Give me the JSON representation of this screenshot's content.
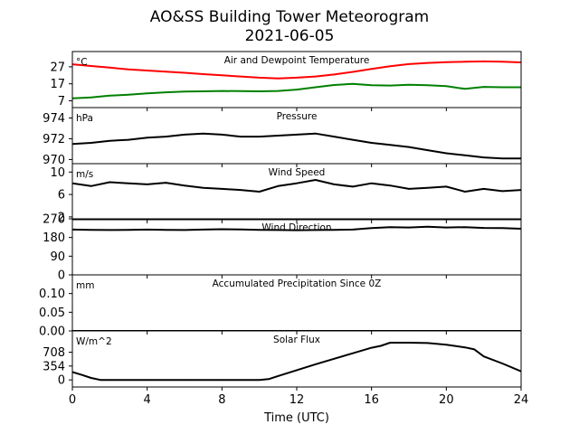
{
  "title": "AO&SS Building Tower Meteorogram",
  "subtitle": "2021-06-05",
  "chart_data": {
    "type": "line",
    "xlabel": "Time (UTC)",
    "xlim": [
      0,
      24
    ],
    "xticks": [
      0,
      4,
      8,
      12,
      16,
      20,
      24
    ],
    "xtick_labels": [
      "0",
      "4",
      "8",
      "12",
      "16",
      "20",
      "24"
    ],
    "panels": [
      {
        "id": "temperature",
        "title": "Air and Dewpoint Temperature",
        "unit": "°C",
        "ylim": [
          3,
          36
        ],
        "yticks": [
          7,
          17,
          27
        ],
        "ytick_labels": [
          "7",
          "17",
          "27"
        ],
        "series": [
          {
            "color": "#ff0000",
            "x": [
              0,
              1,
              2,
              3,
              4,
              5,
              6,
              7,
              8,
              9,
              10,
              11,
              12,
              13,
              14,
              15,
              16,
              17,
              18,
              19,
              20,
              21,
              22,
              23,
              24
            ],
            "values": [
              28.5,
              27.5,
              26.5,
              25.5,
              24.8,
              24.2,
              23.5,
              22.7,
              22.0,
              21.3,
              20.6,
              20.2,
              20.6,
              21.3,
              22.5,
              24.0,
              25.8,
              27.3,
              28.6,
              29.3,
              29.7,
              30.0,
              30.2,
              30.0,
              29.6
            ]
          },
          {
            "color": "#008000",
            "x": [
              0,
              1,
              2,
              3,
              4,
              5,
              6,
              7,
              8,
              9,
              10,
              11,
              12,
              13,
              14,
              15,
              16,
              17,
              18,
              19,
              20,
              21,
              22,
              23,
              24
            ],
            "values": [
              8.5,
              9.0,
              10.0,
              10.6,
              11.4,
              12.0,
              12.4,
              12.6,
              12.8,
              12.7,
              12.6,
              12.8,
              13.6,
              15.0,
              16.3,
              17.0,
              16.2,
              16.0,
              16.4,
              16.2,
              15.6,
              14.0,
              15.2,
              15.0,
              15.0
            ]
          }
        ]
      },
      {
        "id": "pressure",
        "title": "Pressure",
        "unit": "hPa",
        "ylim": [
          969.6,
          975.0
        ],
        "yticks": [
          970,
          972,
          974
        ],
        "ytick_labels": [
          "970",
          "972",
          "974"
        ],
        "series": [
          {
            "color": "#000000",
            "x": [
              0,
              1,
              2,
              3,
              4,
              5,
              6,
              7,
              8,
              9,
              10,
              11,
              12,
              13,
              14,
              15,
              16,
              17,
              18,
              19,
              20,
              21,
              22,
              23,
              24
            ],
            "values": [
              971.5,
              971.6,
              971.8,
              971.9,
              972.1,
              972.2,
              972.4,
              972.5,
              972.4,
              972.2,
              972.2,
              972.3,
              972.4,
              972.5,
              972.2,
              971.9,
              971.6,
              971.4,
              971.2,
              970.9,
              970.6,
              970.4,
              970.2,
              970.1,
              970.1
            ]
          }
        ]
      },
      {
        "id": "wind-speed",
        "title": "Wind Speed",
        "unit": "m/s",
        "ylim": [
          1.5,
          11.5
        ],
        "yticks": [
          2,
          6,
          10
        ],
        "ytick_labels": [
          "2",
          "6",
          "10"
        ],
        "series": [
          {
            "color": "#000000",
            "x": [
              0,
              1,
              2,
              3,
              4,
              5,
              6,
              7,
              8,
              9,
              10,
              11,
              12,
              13,
              14,
              15,
              16,
              17,
              18,
              19,
              20,
              21,
              22,
              23,
              24
            ],
            "values": [
              8.0,
              7.5,
              8.2,
              8.0,
              7.8,
              8.1,
              7.6,
              7.2,
              7.0,
              6.8,
              6.5,
              7.5,
              8.0,
              8.6,
              7.8,
              7.4,
              8.0,
              7.6,
              7.0,
              7.2,
              7.4,
              6.5,
              7.0,
              6.6,
              6.8
            ]
          }
        ]
      },
      {
        "id": "wind-direction",
        "title": "Wind Direction",
        "unit": "",
        "ylim": [
          0,
          270
        ],
        "yticks": [
          0,
          90,
          180,
          270
        ],
        "ytick_labels": [
          "0",
          "90",
          "180",
          "270"
        ],
        "series": [
          {
            "color": "#000000",
            "x": [
              0,
              1,
              2,
              3,
              4,
              5,
              6,
              7,
              8,
              9,
              10,
              11,
              12,
              13,
              14,
              15,
              16,
              17,
              18,
              19,
              20,
              21,
              22,
              23,
              24
            ],
            "values": [
              218,
              217,
              216,
              217,
              218,
              217,
              216,
              218,
              220,
              219,
              217,
              216,
              215,
              216,
              217,
              218,
              225,
              230,
              228,
              232,
              228,
              230,
              226,
              225,
              222
            ]
          }
        ]
      },
      {
        "id": "precipitation",
        "title": "Accumulated Precipitation Since 0Z",
        "unit": "mm",
        "ylim": [
          0,
          0.15
        ],
        "yticks": [
          0.0,
          0.05,
          0.1
        ],
        "ytick_labels": [
          "0.00",
          "0.05",
          "0.10"
        ],
        "series": [
          {
            "color": "#000000",
            "x": [
              0,
              24
            ],
            "values": [
              0,
              0
            ]
          }
        ]
      },
      {
        "id": "solar",
        "title": "Solar Flux",
        "unit": "W/m^2",
        "ylim": [
          -180,
          1250
        ],
        "yticks": [
          0,
          354,
          708
        ],
        "ytick_labels": [
          "0",
          "354",
          "708"
        ],
        "series": [
          {
            "color": "#000000",
            "x": [
              0,
              0.5,
              1.0,
              1.5,
              2,
              4,
              6,
              8,
              10,
              10.5,
              11,
              12,
              13,
              14,
              15,
              16,
              16.5,
              17,
              18,
              19,
              20,
              21,
              21.5,
              22,
              23,
              24
            ],
            "values": [
              200,
              130,
              50,
              0,
              0,
              0,
              0,
              0,
              0,
              20,
              100,
              250,
              400,
              540,
              680,
              820,
              870,
              950,
              950,
              940,
              900,
              830,
              780,
              600,
              420,
              220
            ]
          }
        ]
      }
    ]
  }
}
